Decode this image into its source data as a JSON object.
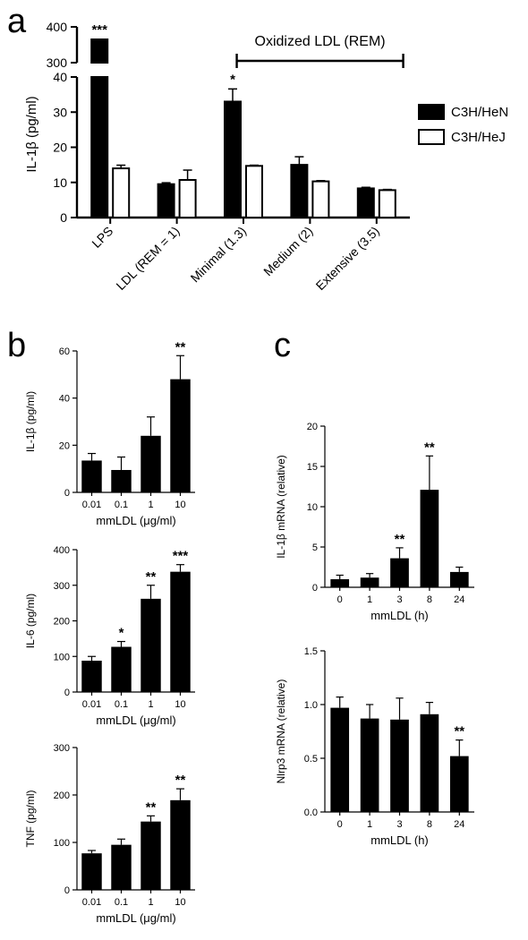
{
  "panels": {
    "a": "a",
    "b": "b",
    "c": "c"
  },
  "chart_data": [
    {
      "id": "a",
      "type": "bar",
      "ylabel": "IL-1β (pg/ml)",
      "ylim_lower": [
        0,
        40
      ],
      "ylim_upper": [
        300,
        400
      ],
      "yticks_lower": [
        "0",
        "10",
        "20",
        "30",
        "40"
      ],
      "yticks_upper": [
        "300",
        "400"
      ],
      "categories": [
        "LPS",
        "LDL (REM = 1)",
        "Minimal (1.3)",
        "Medium (2)",
        "Extensive (3.5)"
      ],
      "series": [
        {
          "name": "C3H/HeN",
          "color": "#000000",
          "values": [
            365,
            9.5,
            33,
            15,
            8.3
          ],
          "errors": [
            3,
            0.4,
            3.6,
            2.3,
            0.3
          ]
        },
        {
          "name": "C3H/HeJ",
          "color": "#ffffff",
          "values": [
            14,
            10.7,
            14.7,
            10.3,
            7.8
          ],
          "errors": [
            0.9,
            2.8,
            0.2,
            0.2,
            0.2
          ]
        }
      ],
      "significance": [
        "***",
        "",
        "*",
        "",
        ""
      ],
      "bracket_label": "Oxidized LDL (REM)",
      "legend": "right"
    },
    {
      "id": "b1",
      "type": "bar",
      "ylabel": "IL-1β (pg/ml)",
      "xlabel": "mmLDL (μg/ml)",
      "categories": [
        "0.01",
        "0.1",
        "1",
        "10"
      ],
      "values": [
        13.5,
        9.5,
        24,
        48
      ],
      "errors": [
        3,
        5.5,
        8,
        10
      ],
      "significance": [
        "",
        "",
        "",
        "**"
      ],
      "ylim": [
        0,
        60
      ],
      "yticks": [
        "0",
        "20",
        "40",
        "60"
      ]
    },
    {
      "id": "b2",
      "type": "bar",
      "ylabel": "IL-6 (pg/ml)",
      "xlabel": "mmLDL (μg/ml)",
      "categories": [
        "0.01",
        "0.1",
        "1",
        "10"
      ],
      "values": [
        88,
        127,
        262,
        338
      ],
      "errors": [
        12,
        15,
        38,
        20
      ],
      "significance": [
        "",
        "*",
        "**",
        "***"
      ],
      "ylim": [
        0,
        400
      ],
      "yticks": [
        "0",
        "100",
        "200",
        "300",
        "400"
      ]
    },
    {
      "id": "b3",
      "type": "bar",
      "ylabel": "TNF (pg/ml)",
      "xlabel": "mmLDL (μg/ml)",
      "categories": [
        "0.01",
        "0.1",
        "1",
        "10"
      ],
      "values": [
        77,
        95,
        144,
        189
      ],
      "errors": [
        6,
        12,
        12,
        24
      ],
      "significance": [
        "",
        "",
        "**",
        "**"
      ],
      "ylim": [
        0,
        300
      ],
      "yticks": [
        "0",
        "100",
        "200",
        "300"
      ]
    },
    {
      "id": "c1",
      "type": "bar",
      "ylabel": "IL-1β mRNA (relative)",
      "xlabel": "mmLDL (h)",
      "categories": [
        "0",
        "1",
        "3",
        "8",
        "24"
      ],
      "values": [
        1.0,
        1.2,
        3.6,
        12.1,
        1.9
      ],
      "errors": [
        0.5,
        0.5,
        1.3,
        4.2,
        0.6
      ],
      "significance": [
        "",
        "",
        "**",
        "**",
        ""
      ],
      "ylim": [
        0,
        20
      ],
      "yticks": [
        "0",
        "5",
        "10",
        "15",
        "20"
      ]
    },
    {
      "id": "c2",
      "type": "bar",
      "ylabel": "Nlrp3 mRNA (relative)",
      "xlabel": "mmLDL (h)",
      "categories": [
        "0",
        "1",
        "3",
        "8",
        "24"
      ],
      "values": [
        0.97,
        0.87,
        0.86,
        0.91,
        0.52
      ],
      "errors": [
        0.1,
        0.13,
        0.2,
        0.11,
        0.15
      ],
      "significance": [
        "",
        "",
        "",
        "",
        "**"
      ],
      "ylim": [
        0,
        1.5
      ],
      "yticks": [
        "0.0",
        "0.5",
        "1.0",
        "1.5"
      ]
    }
  ]
}
